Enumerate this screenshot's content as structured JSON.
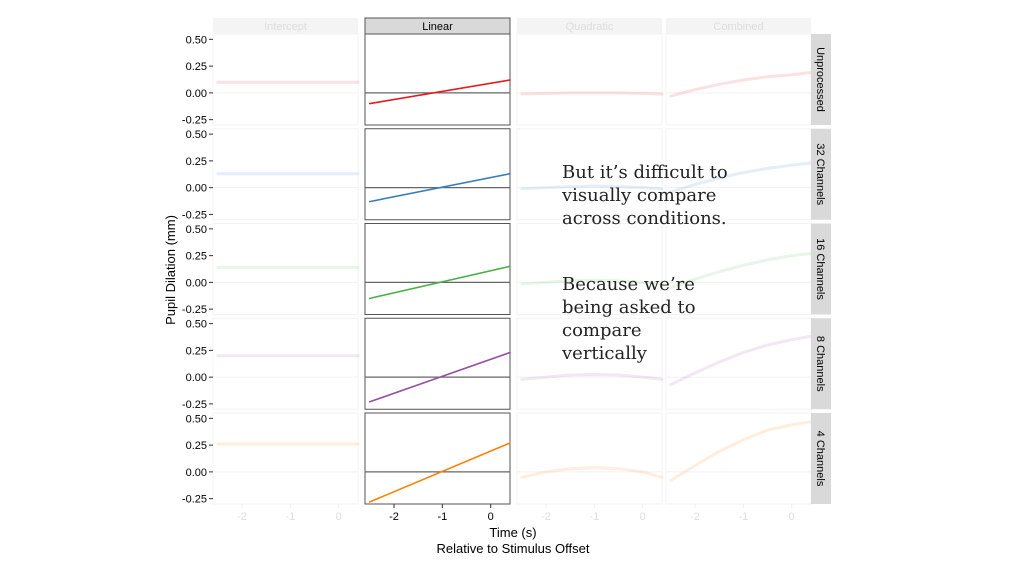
{
  "chart_data": {
    "type": "line",
    "xlabel": "Time (s)",
    "xlabel_sub": "Relative to Stimulus Offset",
    "ylabel": "Pupil Dilation (mm)",
    "columns": [
      "Intercept",
      "Linear",
      "Quadratic",
      "Combined"
    ],
    "rows": [
      "Unprocessed",
      "32 Channels",
      "16 Channels",
      "8 Channels",
      "4 Channels"
    ],
    "highlighted_column": "Linear",
    "xlim": [
      -2.6,
      0.4
    ],
    "ylim": [
      -0.3,
      0.55
    ],
    "x_ticks": [
      -2,
      -1,
      0
    ],
    "x_tick_labels": [
      "-2",
      "-1",
      "0"
    ],
    "y_ticks": [
      -0.25,
      0,
      0.25,
      0.5
    ],
    "y_tick_labels": [
      "-0.25",
      "0.00",
      "0.25",
      "0.50"
    ],
    "series": [
      {
        "name": "Unprocessed",
        "color": "#e41a1c",
        "intercept": {
          "x": [
            -2.5,
            0.4
          ],
          "y": [
            0.1,
            0.1
          ]
        },
        "linear": {
          "x": [
            -2.5,
            0.4
          ],
          "y": [
            -0.1,
            0.12
          ]
        },
        "quadratic": {
          "x": [
            -2.5,
            -2.0,
            -1.5,
            -1.0,
            -0.5,
            0.0,
            0.4
          ],
          "y": [
            -0.01,
            -0.005,
            0.0,
            0.0,
            0.0,
            -0.005,
            -0.01
          ]
        },
        "combined": {
          "x": [
            -2.5,
            -2.0,
            -1.5,
            -1.0,
            -0.5,
            0.0,
            0.4
          ],
          "y": [
            -0.03,
            0.03,
            0.08,
            0.12,
            0.15,
            0.17,
            0.19
          ]
        }
      },
      {
        "name": "32 Channels",
        "color": "#377eb8",
        "intercept": {
          "x": [
            -2.5,
            0.4
          ],
          "y": [
            0.13,
            0.13
          ]
        },
        "linear": {
          "x": [
            -2.5,
            0.4
          ],
          "y": [
            -0.13,
            0.13
          ]
        },
        "quadratic": {
          "x": [
            -2.5,
            -2.0,
            -1.5,
            -1.0,
            -0.5,
            0.0,
            0.4
          ],
          "y": [
            -0.01,
            0.0,
            0.01,
            0.015,
            0.01,
            0.0,
            -0.01
          ]
        },
        "combined": {
          "x": [
            -2.5,
            -2.0,
            -1.5,
            -1.0,
            -0.5,
            0.0,
            0.4
          ],
          "y": [
            -0.04,
            0.03,
            0.09,
            0.14,
            0.18,
            0.21,
            0.23
          ]
        }
      },
      {
        "name": "16 Channels",
        "color": "#4daf4a",
        "intercept": {
          "x": [
            -2.5,
            0.4
          ],
          "y": [
            0.14,
            0.14
          ]
        },
        "linear": {
          "x": [
            -2.5,
            0.4
          ],
          "y": [
            -0.15,
            0.15
          ]
        },
        "quadratic": {
          "x": [
            -2.5,
            -2.0,
            -1.5,
            -1.0,
            -0.5,
            0.0,
            0.4
          ],
          "y": [
            -0.015,
            0.0,
            0.015,
            0.02,
            0.015,
            0.0,
            -0.015
          ]
        },
        "combined": {
          "x": [
            -2.5,
            -2.0,
            -1.5,
            -1.0,
            -0.5,
            0.0,
            0.4
          ],
          "y": [
            -0.05,
            0.03,
            0.1,
            0.16,
            0.21,
            0.25,
            0.27
          ]
        }
      },
      {
        "name": "8 Channels",
        "color": "#984ea3",
        "intercept": {
          "x": [
            -2.5,
            0.4
          ],
          "y": [
            0.2,
            0.2
          ]
        },
        "linear": {
          "x": [
            -2.5,
            0.4
          ],
          "y": [
            -0.23,
            0.23
          ]
        },
        "quadratic": {
          "x": [
            -2.5,
            -2.0,
            -1.5,
            -1.0,
            -0.5,
            0.0,
            0.4
          ],
          "y": [
            -0.02,
            0.0,
            0.02,
            0.025,
            0.02,
            0.0,
            -0.02
          ]
        },
        "combined": {
          "x": [
            -2.5,
            -2.0,
            -1.5,
            -1.0,
            -0.5,
            0.0,
            0.4
          ],
          "y": [
            -0.07,
            0.04,
            0.14,
            0.23,
            0.3,
            0.35,
            0.38
          ]
        }
      },
      {
        "name": "4 Channels",
        "color": "#ff7f00",
        "intercept": {
          "x": [
            -2.5,
            0.4
          ],
          "y": [
            0.26,
            0.26
          ]
        },
        "linear": {
          "x": [
            -2.5,
            0.4
          ],
          "y": [
            -0.28,
            0.27
          ]
        },
        "quadratic": {
          "x": [
            -2.5,
            -2.0,
            -1.5,
            -1.0,
            -0.5,
            0.0,
            0.4
          ],
          "y": [
            -0.05,
            0.0,
            0.03,
            0.04,
            0.03,
            0.0,
            -0.05
          ]
        },
        "combined": {
          "x": [
            -2.5,
            -2.0,
            -1.5,
            -1.0,
            -0.5,
            0.0,
            0.4
          ],
          "y": [
            -0.08,
            0.06,
            0.19,
            0.3,
            0.39,
            0.44,
            0.47
          ]
        }
      }
    ]
  },
  "annotations": {
    "first": "But it’s difficult to\nvisually compare\nacross conditions.",
    "second": "Because we’re\nbeing asked to\ncompare\nvertically"
  },
  "colors": {
    "strip_bg": "#d9d9d9",
    "strip_bg_faded": "#f4f4f4",
    "panel_border": "#555555",
    "zero_line": "#666666",
    "faded_text": "#dddddd"
  }
}
